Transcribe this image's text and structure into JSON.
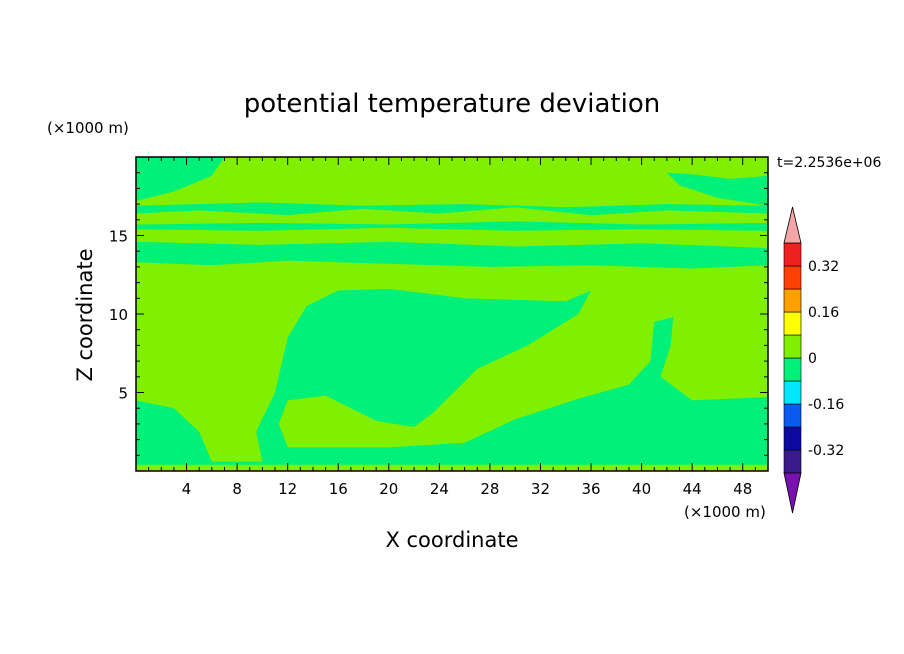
{
  "chart_data": {
    "type": "heatmap",
    "title": "potential temperature deviation",
    "time_label": "t=2.2536e+06",
    "xlabel": "X coordinate",
    "ylabel": "Z coordinate",
    "x_unit": "(×1000 m)",
    "y_unit": "(×1000 m)",
    "xlim": [
      0,
      50
    ],
    "ylim": [
      0,
      20
    ],
    "x_ticks": [
      4,
      8,
      12,
      16,
      20,
      24,
      28,
      32,
      36,
      40,
      44,
      48
    ],
    "y_ticks": [
      5,
      10,
      15
    ],
    "colorbar": {
      "levels": [
        -0.4,
        -0.32,
        -0.24,
        -0.16,
        -0.08,
        0,
        0.08,
        0.16,
        0.24,
        0.32,
        0.4
      ],
      "tick_labels": [
        "-0.32",
        "-0.16",
        "0",
        "0.16",
        "0.32"
      ],
      "tick_values": [
        -0.32,
        -0.16,
        0,
        0.16,
        0.32
      ],
      "colors": [
        "#3a1a8c",
        "#0a0aa0",
        "#0a5af0",
        "#00e6ff",
        "#00f07a",
        "#80f000",
        "#ffff00",
        "#ffa000",
        "#ff4000",
        "#ee2020"
      ],
      "under_color": "#7a10b0",
      "over_color": "#f5a5a5"
    },
    "field": {
      "background_value": 0.02,
      "regions": [
        {
          "value": -0.02,
          "shape": "plume-left",
          "points": [
            [
              0,
              4.5
            ],
            [
              3,
              4
            ],
            [
              5,
              2.5
            ],
            [
              6,
              0.6
            ],
            [
              10,
              0.6
            ],
            [
              9.5,
              2.5
            ],
            [
              11,
              5
            ],
            [
              12,
              8.5
            ],
            [
              13.5,
              10.5
            ],
            [
              16,
              11.5
            ],
            [
              20,
              11.6
            ],
            [
              26,
              11
            ],
            [
              34,
              10.8
            ],
            [
              36,
              11.5
            ],
            [
              35,
              10
            ],
            [
              31,
              8
            ],
            [
              27,
              6.5
            ],
            [
              23.5,
              3.7
            ],
            [
              22,
              2.8
            ],
            [
              19,
              3.2
            ],
            [
              15,
              4.8
            ],
            [
              12,
              4.5
            ],
            [
              11.3,
              3
            ],
            [
              12,
              1.5
            ],
            [
              20,
              1.5
            ],
            [
              26,
              1.8
            ],
            [
              30,
              3.3
            ],
            [
              35,
              4.6
            ],
            [
              39,
              5.5
            ],
            [
              40.7,
              7
            ],
            [
              41,
              9.5
            ],
            [
              42.5,
              9.8
            ],
            [
              42.3,
              8
            ],
            [
              41.5,
              6
            ],
            [
              44,
              4.5
            ],
            [
              50,
              4.7
            ],
            [
              50,
              0.4
            ],
            [
              0,
              0.4
            ]
          ]
        },
        {
          "value": -0.02,
          "shape": "band-low",
          "points": [
            [
              0,
              13.3
            ],
            [
              6,
              13.1
            ],
            [
              12,
              13.4
            ],
            [
              20,
              13.2
            ],
            [
              28,
              13.0
            ],
            [
              36,
              13.1
            ],
            [
              44,
              12.9
            ],
            [
              50,
              13.1
            ],
            [
              50,
              14.2
            ],
            [
              40,
              14.5
            ],
            [
              30,
              14.3
            ],
            [
              20,
              14.6
            ],
            [
              10,
              14.4
            ],
            [
              0,
              14.6
            ]
          ]
        },
        {
          "value": -0.02,
          "shape": "band-mid",
          "points": [
            [
              0,
              15.4
            ],
            [
              10,
              15.3
            ],
            [
              20,
              15.5
            ],
            [
              30,
              15.3
            ],
            [
              40,
              15.4
            ],
            [
              50,
              15.3
            ],
            [
              50,
              15.8
            ],
            [
              40,
              15.7
            ],
            [
              30,
              15.9
            ],
            [
              20,
              15.7
            ],
            [
              10,
              15.8
            ],
            [
              0,
              15.7
            ]
          ]
        },
        {
          "value": -0.02,
          "shape": "band-top",
          "points": [
            [
              0,
              16.4
            ],
            [
              5,
              16.6
            ],
            [
              12,
              16.3
            ],
            [
              18,
              16.7
            ],
            [
              24,
              16.4
            ],
            [
              30,
              16.8
            ],
            [
              36,
              16.3
            ],
            [
              42,
              16.6
            ],
            [
              50,
              16.4
            ],
            [
              50,
              16.9
            ],
            [
              42,
              17.0
            ],
            [
              34,
              16.8
            ],
            [
              26,
              17.0
            ],
            [
              18,
              16.9
            ],
            [
              10,
              17.1
            ],
            [
              0,
              16.9
            ]
          ]
        },
        {
          "value": -0.02,
          "shape": "top-left",
          "points": [
            [
              0,
              17.2
            ],
            [
              3,
              17.8
            ],
            [
              6,
              18.8
            ],
            [
              7,
              20
            ],
            [
              0,
              20
            ]
          ]
        },
        {
          "value": -0.02,
          "shape": "top-right",
          "points": [
            [
              50,
              16.9
            ],
            [
              46,
              17.4
            ],
            [
              43,
              18.2
            ],
            [
              42,
              19
            ],
            [
              44,
              18.9
            ],
            [
              47,
              18.6
            ],
            [
              50,
              18.8
            ]
          ]
        }
      ]
    }
  }
}
